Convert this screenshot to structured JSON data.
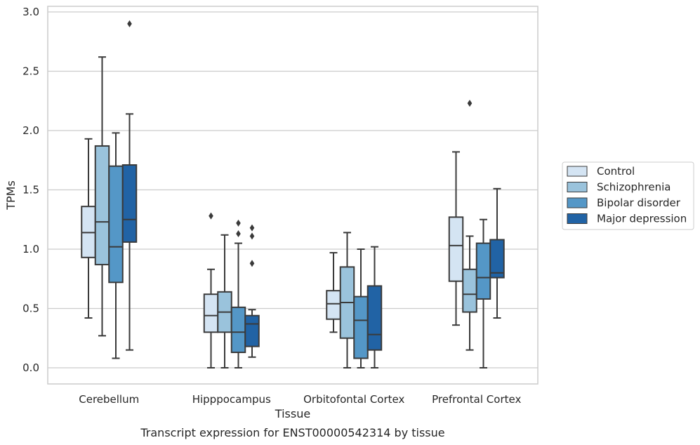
{
  "chart_data": {
    "type": "box",
    "title": "",
    "caption": "Transcript expression for ENST00000542314 by tissue",
    "xlabel": "Tissue",
    "ylabel": "TPMs",
    "ylim": [
      -0.14,
      3.05
    ],
    "yticks": [
      "0.0",
      "0.5",
      "1.0",
      "1.5",
      "2.0",
      "2.5",
      "3.0"
    ],
    "grid": "horizontal",
    "legend_position": "right",
    "categories": [
      "Cerebellum",
      "Hipppocampus",
      "Orbitofontal Cortex",
      "Prefrontal Cortex"
    ],
    "series": [
      {
        "name": "Control",
        "color": "#d4e4f3",
        "boxes": [
          {
            "whislo": 0.42,
            "q1": 0.93,
            "median": 1.14,
            "q3": 1.36,
            "whishi": 1.93,
            "fliers": []
          },
          {
            "whislo": 0.0,
            "q1": 0.3,
            "median": 0.44,
            "q3": 0.62,
            "whishi": 0.83,
            "fliers": [
              1.28
            ]
          },
          {
            "whislo": 0.3,
            "q1": 0.41,
            "median": 0.54,
            "q3": 0.65,
            "whishi": 0.97,
            "fliers": []
          },
          {
            "whislo": 0.36,
            "q1": 0.73,
            "median": 1.03,
            "q3": 1.27,
            "whishi": 1.82,
            "fliers": []
          }
        ]
      },
      {
        "name": "Schizophrenia",
        "color": "#9ac3dc",
        "boxes": [
          {
            "whislo": 0.27,
            "q1": 0.87,
            "median": 1.23,
            "q3": 1.87,
            "whishi": 2.62,
            "fliers": []
          },
          {
            "whislo": 0.0,
            "q1": 0.3,
            "median": 0.47,
            "q3": 0.64,
            "whishi": 1.12,
            "fliers": []
          },
          {
            "whislo": 0.0,
            "q1": 0.25,
            "median": 0.55,
            "q3": 0.85,
            "whishi": 1.14,
            "fliers": []
          },
          {
            "whislo": 0.15,
            "q1": 0.47,
            "median": 0.62,
            "q3": 0.83,
            "whishi": 1.11,
            "fliers": [
              2.23
            ]
          }
        ]
      },
      {
        "name": "Bipolar disorder",
        "color": "#5497c7",
        "boxes": [
          {
            "whislo": 0.08,
            "q1": 0.72,
            "median": 1.02,
            "q3": 1.7,
            "whishi": 1.98,
            "fliers": []
          },
          {
            "whislo": 0.0,
            "q1": 0.13,
            "median": 0.3,
            "q3": 0.51,
            "whishi": 1.05,
            "fliers": [
              1.13,
              1.22
            ]
          },
          {
            "whislo": 0.0,
            "q1": 0.08,
            "median": 0.4,
            "q3": 0.6,
            "whishi": 1.0,
            "fliers": []
          },
          {
            "whislo": 0.0,
            "q1": 0.58,
            "median": 0.76,
            "q3": 1.05,
            "whishi": 1.25,
            "fliers": []
          }
        ]
      },
      {
        "name": "Major depression",
        "color": "#2163a5",
        "boxes": [
          {
            "whislo": 0.15,
            "q1": 1.06,
            "median": 1.25,
            "q3": 1.71,
            "whishi": 2.14,
            "fliers": [
              2.9
            ]
          },
          {
            "whislo": 0.09,
            "q1": 0.18,
            "median": 0.37,
            "q3": 0.44,
            "whishi": 0.49,
            "fliers": [
              0.88,
              1.11,
              1.18
            ]
          },
          {
            "whislo": 0.0,
            "q1": 0.15,
            "median": 0.28,
            "q3": 0.69,
            "whishi": 1.02,
            "fliers": []
          },
          {
            "whislo": 0.42,
            "q1": 0.76,
            "median": 0.8,
            "q3": 1.08,
            "whishi": 1.51,
            "fliers": []
          }
        ]
      }
    ]
  }
}
